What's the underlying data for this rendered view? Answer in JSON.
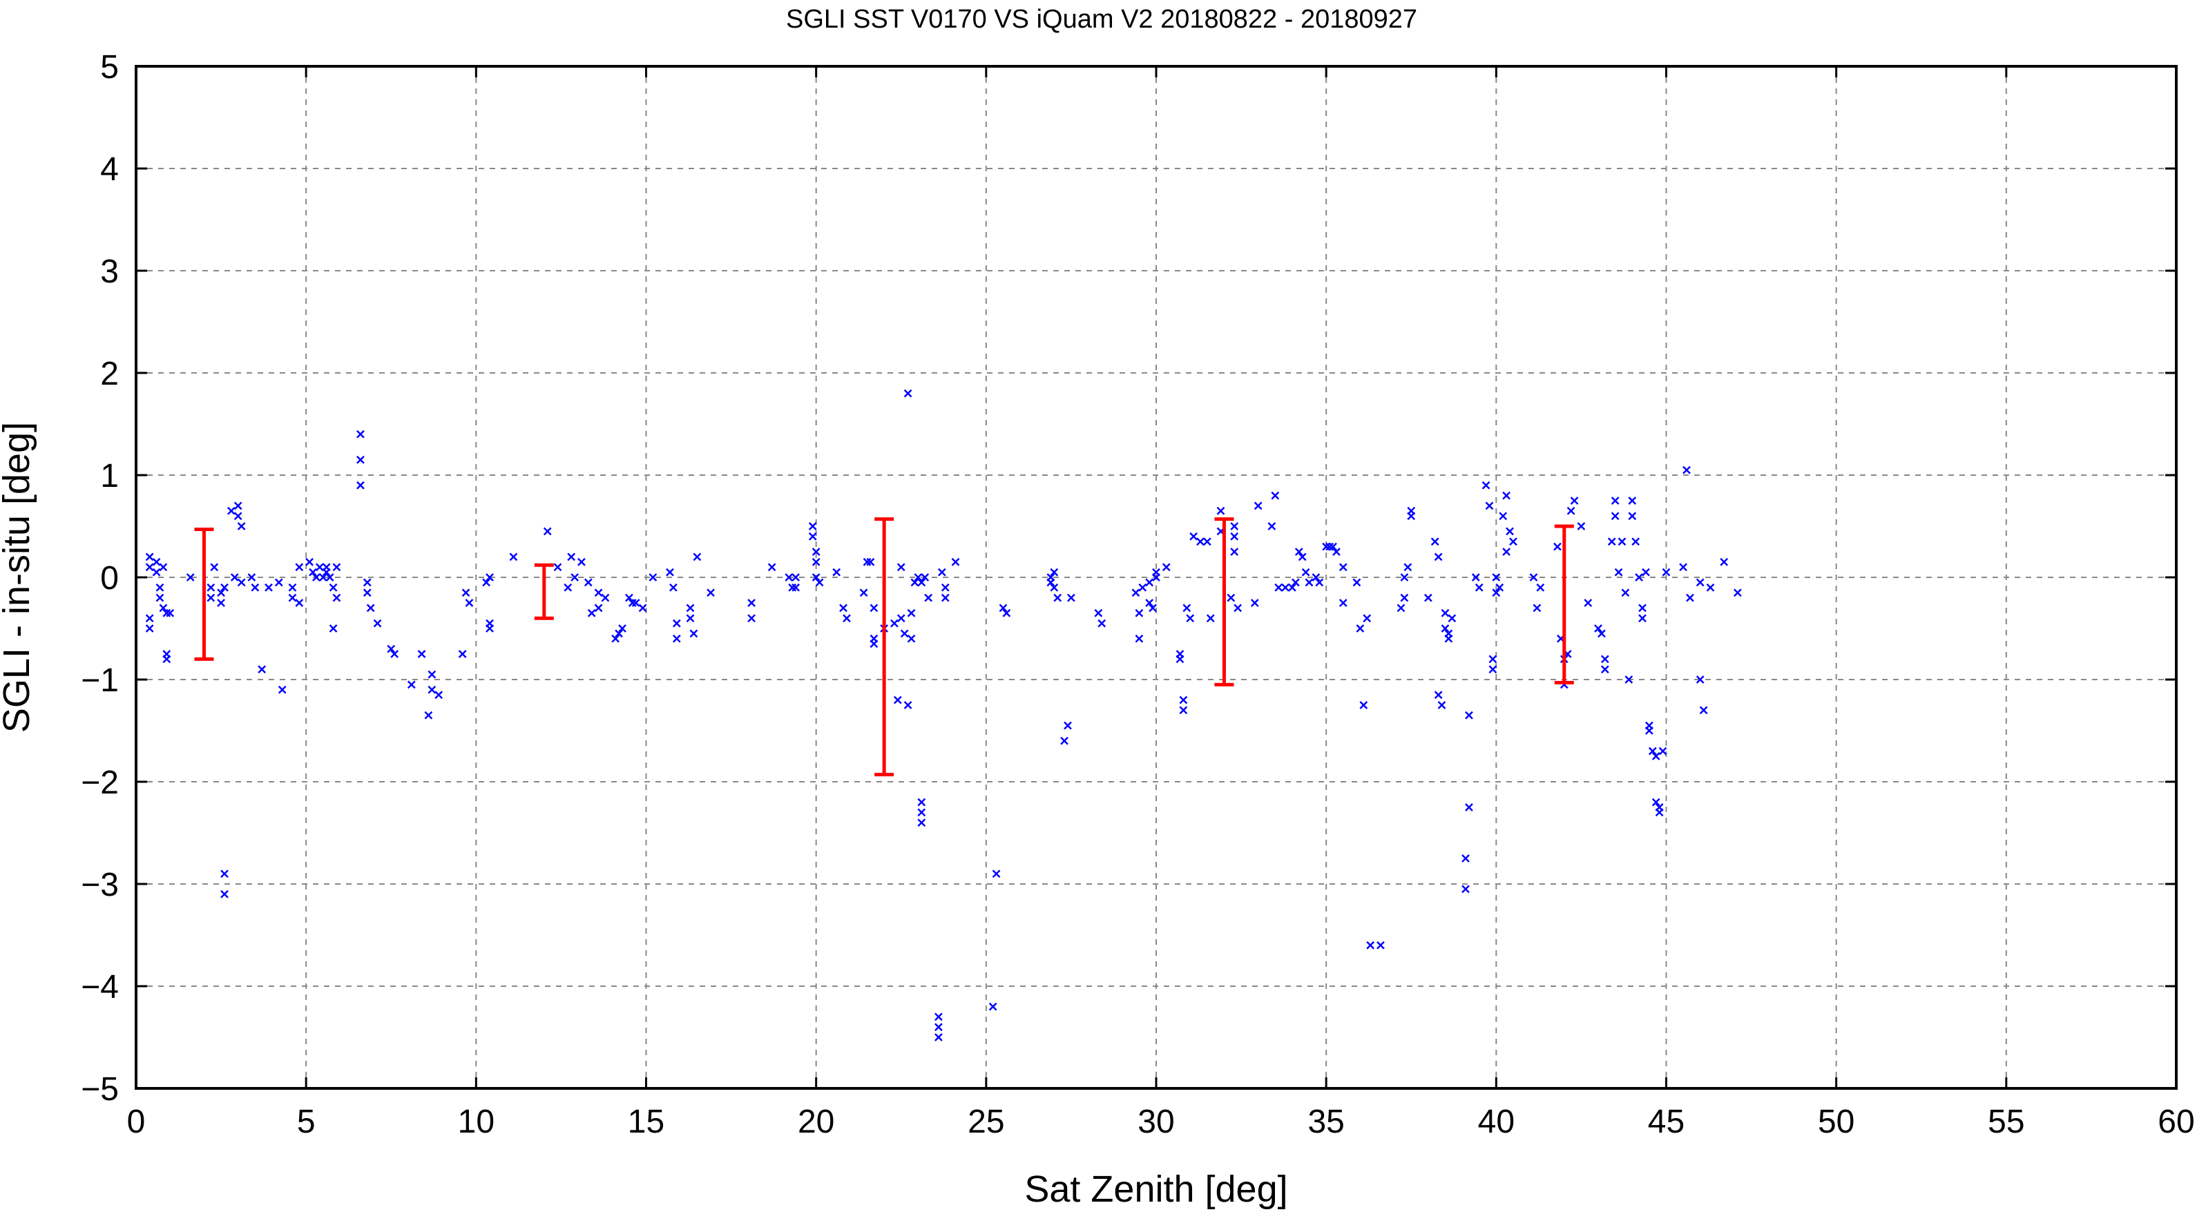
{
  "chart_data": {
    "type": "scatter",
    "title": "SGLI SST V0170 VS iQuam V2 20180822 - 20180927",
    "xlabel": "Sat Zenith [deg]",
    "ylabel": "SGLI - in-situ [deg]",
    "xlim": [
      0,
      60
    ],
    "ylim": [
      -5,
      5
    ],
    "x_ticks": [
      0,
      5,
      10,
      15,
      20,
      25,
      30,
      35,
      40,
      45,
      50,
      55,
      60
    ],
    "y_ticks": [
      -5,
      -4,
      -3,
      -2,
      -1,
      0,
      1,
      2,
      3,
      4,
      5
    ],
    "x_tick_labels": [
      "0",
      "5",
      "10",
      "15",
      "20",
      "25",
      "30",
      "35",
      "40",
      "45",
      "50",
      "55",
      "60"
    ],
    "y_tick_labels": [
      "−5",
      "−4",
      "−3",
      "−2",
      "−1",
      "0",
      "1",
      "2",
      "3",
      "4",
      "5"
    ],
    "grid": true,
    "colors": {
      "points": "#0000ff",
      "error_bars": "#ff0000",
      "grid": "#888888",
      "axes": "#000000"
    },
    "series": [
      {
        "marker": "x",
        "points": [
          [
            0.4,
            0.2
          ],
          [
            0.4,
            0.1
          ],
          [
            0.4,
            -0.4
          ],
          [
            0.4,
            -0.5
          ],
          [
            0.6,
            0.15
          ],
          [
            0.6,
            0.05
          ],
          [
            0.7,
            -0.1
          ],
          [
            0.7,
            -0.2
          ],
          [
            0.8,
            -0.3
          ],
          [
            0.8,
            0.1
          ],
          [
            0.9,
            -0.35
          ],
          [
            0.9,
            -0.8
          ],
          [
            0.9,
            -0.75
          ],
          [
            1.0,
            -0.35
          ],
          [
            1.6,
            0.0
          ],
          [
            2.2,
            -0.1
          ],
          [
            2.2,
            -0.2
          ],
          [
            2.3,
            0.1
          ],
          [
            2.5,
            -0.15
          ],
          [
            2.5,
            -0.25
          ],
          [
            2.6,
            -0.1
          ],
          [
            2.6,
            -2.9
          ],
          [
            2.6,
            -3.1
          ],
          [
            2.8,
            0.65
          ],
          [
            2.9,
            0.0
          ],
          [
            3.0,
            0.7
          ],
          [
            3.0,
            0.6
          ],
          [
            3.1,
            0.5
          ],
          [
            3.1,
            -0.05
          ],
          [
            3.4,
            0.0
          ],
          [
            3.5,
            -0.1
          ],
          [
            3.7,
            -0.9
          ],
          [
            3.9,
            -0.1
          ],
          [
            4.2,
            -0.05
          ],
          [
            4.3,
            -1.1
          ],
          [
            4.6,
            -0.2
          ],
          [
            4.6,
            -0.1
          ],
          [
            4.8,
            0.1
          ],
          [
            4.8,
            -0.25
          ],
          [
            5.1,
            0.15
          ],
          [
            5.2,
            0.05
          ],
          [
            5.3,
            0.0
          ],
          [
            5.4,
            0.1
          ],
          [
            5.5,
            0.0
          ],
          [
            5.6,
            0.1
          ],
          [
            5.6,
            0.05
          ],
          [
            5.7,
            0.0
          ],
          [
            5.8,
            -0.1
          ],
          [
            5.8,
            -0.5
          ],
          [
            5.9,
            0.1
          ],
          [
            5.9,
            -0.2
          ],
          [
            6.6,
            1.4
          ],
          [
            6.6,
            1.15
          ],
          [
            6.6,
            0.9
          ],
          [
            6.8,
            -0.05
          ],
          [
            6.8,
            -0.15
          ],
          [
            6.9,
            -0.3
          ],
          [
            7.1,
            -0.45
          ],
          [
            7.5,
            -0.7
          ],
          [
            7.6,
            -0.75
          ],
          [
            8.1,
            -1.05
          ],
          [
            8.4,
            -0.75
          ],
          [
            8.6,
            -1.35
          ],
          [
            8.7,
            -1.1
          ],
          [
            8.7,
            -0.95
          ],
          [
            8.9,
            -1.15
          ],
          [
            9.6,
            -0.75
          ],
          [
            9.7,
            -0.15
          ],
          [
            9.8,
            -0.25
          ],
          [
            10.3,
            -0.05
          ],
          [
            10.4,
            0.0
          ],
          [
            10.4,
            -0.45
          ],
          [
            10.4,
            -0.5
          ],
          [
            11.1,
            0.2
          ],
          [
            12.1,
            0.45
          ],
          [
            12.4,
            0.1
          ],
          [
            12.7,
            -0.1
          ],
          [
            12.8,
            0.2
          ],
          [
            12.9,
            0.0
          ],
          [
            13.1,
            0.15
          ],
          [
            13.3,
            -0.05
          ],
          [
            13.4,
            -0.35
          ],
          [
            13.6,
            -0.15
          ],
          [
            13.6,
            -0.3
          ],
          [
            13.8,
            -0.2
          ],
          [
            14.1,
            -0.6
          ],
          [
            14.2,
            -0.55
          ],
          [
            14.3,
            -0.5
          ],
          [
            14.5,
            -0.2
          ],
          [
            14.6,
            -0.25
          ],
          [
            14.7,
            -0.25
          ],
          [
            14.9,
            -0.3
          ],
          [
            15.2,
            0.0
          ],
          [
            15.7,
            0.05
          ],
          [
            15.8,
            -0.1
          ],
          [
            15.9,
            -0.45
          ],
          [
            15.9,
            -0.6
          ],
          [
            16.3,
            -0.3
          ],
          [
            16.3,
            -0.4
          ],
          [
            16.4,
            -0.55
          ],
          [
            16.5,
            0.2
          ],
          [
            16.9,
            -0.15
          ],
          [
            18.1,
            -0.25
          ],
          [
            18.1,
            -0.4
          ],
          [
            18.7,
            0.1
          ],
          [
            19.2,
            0.0
          ],
          [
            19.3,
            -0.1
          ],
          [
            19.4,
            0.0
          ],
          [
            19.4,
            -0.1
          ],
          [
            19.9,
            0.5
          ],
          [
            19.9,
            0.4
          ],
          [
            20.0,
            0.25
          ],
          [
            20.0,
            0.15
          ],
          [
            20.0,
            0.0
          ],
          [
            20.1,
            -0.05
          ],
          [
            20.6,
            0.05
          ],
          [
            20.8,
            -0.3
          ],
          [
            20.9,
            -0.4
          ],
          [
            21.4,
            -0.15
          ],
          [
            21.5,
            0.15
          ],
          [
            21.6,
            0.15
          ],
          [
            21.7,
            -0.3
          ],
          [
            21.7,
            -0.6
          ],
          [
            21.7,
            -0.65
          ],
          [
            22.0,
            -0.5
          ],
          [
            22.3,
            -0.45
          ],
          [
            22.4,
            -1.2
          ],
          [
            22.5,
            0.1
          ],
          [
            22.5,
            -0.4
          ],
          [
            22.6,
            -0.55
          ],
          [
            22.7,
            1.8
          ],
          [
            22.7,
            -1.25
          ],
          [
            22.8,
            -0.35
          ],
          [
            22.8,
            -0.6
          ],
          [
            22.9,
            -0.05
          ],
          [
            23.0,
            0.0
          ],
          [
            23.1,
            -0.05
          ],
          [
            23.1,
            -2.2
          ],
          [
            23.1,
            -2.3
          ],
          [
            23.1,
            -2.4
          ],
          [
            23.2,
            0.0
          ],
          [
            23.3,
            -0.2
          ],
          [
            23.6,
            -4.3
          ],
          [
            23.6,
            -4.4
          ],
          [
            23.6,
            -4.5
          ],
          [
            23.7,
            0.05
          ],
          [
            23.8,
            -0.1
          ],
          [
            23.8,
            -0.2
          ],
          [
            24.1,
            0.15
          ],
          [
            25.2,
            -4.2
          ],
          [
            25.3,
            -2.9
          ],
          [
            25.5,
            -0.3
          ],
          [
            25.6,
            -0.35
          ],
          [
            26.9,
            0.0
          ],
          [
            26.9,
            -0.05
          ],
          [
            27.0,
            0.05
          ],
          [
            27.0,
            -0.1
          ],
          [
            27.1,
            -0.2
          ],
          [
            27.3,
            -1.6
          ],
          [
            27.4,
            -1.45
          ],
          [
            27.5,
            -0.2
          ],
          [
            28.3,
            -0.35
          ],
          [
            28.4,
            -0.45
          ],
          [
            29.4,
            -0.15
          ],
          [
            29.5,
            -0.35
          ],
          [
            29.5,
            -0.6
          ],
          [
            29.6,
            -0.1
          ],
          [
            29.8,
            -0.05
          ],
          [
            29.8,
            -0.25
          ],
          [
            29.9,
            -0.3
          ],
          [
            30.0,
            0.05
          ],
          [
            30.0,
            0.0
          ],
          [
            30.3,
            0.1
          ],
          [
            30.7,
            -0.75
          ],
          [
            30.7,
            -0.8
          ],
          [
            30.8,
            -1.2
          ],
          [
            30.8,
            -1.3
          ],
          [
            30.9,
            -0.3
          ],
          [
            31.0,
            -0.4
          ],
          [
            31.1,
            0.4
          ],
          [
            31.3,
            0.35
          ],
          [
            31.5,
            0.35
          ],
          [
            31.6,
            -0.4
          ],
          [
            31.9,
            0.45
          ],
          [
            31.9,
            0.65
          ],
          [
            32.2,
            -0.2
          ],
          [
            32.3,
            0.5
          ],
          [
            32.3,
            0.4
          ],
          [
            32.3,
            0.25
          ],
          [
            32.4,
            -0.3
          ],
          [
            32.9,
            -0.25
          ],
          [
            33.0,
            0.7
          ],
          [
            33.4,
            0.5
          ],
          [
            33.5,
            0.8
          ],
          [
            33.6,
            -0.1
          ],
          [
            33.8,
            -0.1
          ],
          [
            34.0,
            -0.1
          ],
          [
            34.1,
            -0.05
          ],
          [
            34.2,
            0.25
          ],
          [
            34.3,
            0.2
          ],
          [
            34.4,
            0.05
          ],
          [
            34.5,
            -0.05
          ],
          [
            34.7,
            0.0
          ],
          [
            34.8,
            -0.05
          ],
          [
            35.0,
            0.3
          ],
          [
            35.1,
            0.3
          ],
          [
            35.2,
            0.3
          ],
          [
            35.3,
            0.25
          ],
          [
            35.5,
            0.1
          ],
          [
            35.5,
            -0.25
          ],
          [
            35.9,
            -0.05
          ],
          [
            36.0,
            -0.5
          ],
          [
            36.1,
            -1.25
          ],
          [
            36.2,
            -0.4
          ],
          [
            36.3,
            -3.6
          ],
          [
            36.6,
            -3.6
          ],
          [
            37.2,
            -0.3
          ],
          [
            37.3,
            -0.2
          ],
          [
            37.3,
            0.0
          ],
          [
            37.4,
            0.1
          ],
          [
            37.5,
            0.6
          ],
          [
            37.5,
            0.65
          ],
          [
            38.0,
            -0.2
          ],
          [
            38.2,
            0.35
          ],
          [
            38.3,
            0.2
          ],
          [
            38.3,
            -1.15
          ],
          [
            38.4,
            -1.25
          ],
          [
            38.5,
            -0.35
          ],
          [
            38.5,
            -0.5
          ],
          [
            38.6,
            -0.55
          ],
          [
            38.6,
            -0.6
          ],
          [
            38.7,
            -0.4
          ],
          [
            39.1,
            -3.05
          ],
          [
            39.1,
            -2.75
          ],
          [
            39.2,
            -2.25
          ],
          [
            39.2,
            -1.35
          ],
          [
            39.4,
            0.0
          ],
          [
            39.5,
            -0.1
          ],
          [
            39.7,
            0.9
          ],
          [
            39.8,
            0.7
          ],
          [
            39.9,
            -0.8
          ],
          [
            39.9,
            -0.9
          ],
          [
            40.0,
            0.0
          ],
          [
            40.0,
            -0.15
          ],
          [
            40.1,
            -0.1
          ],
          [
            40.2,
            0.6
          ],
          [
            40.3,
            0.25
          ],
          [
            40.3,
            0.8
          ],
          [
            40.4,
            0.45
          ],
          [
            40.5,
            0.35
          ],
          [
            41.1,
            0.0
          ],
          [
            41.2,
            -0.3
          ],
          [
            41.3,
            -0.1
          ],
          [
            41.8,
            0.3
          ],
          [
            41.9,
            -0.6
          ],
          [
            42.0,
            -1.05
          ],
          [
            42.0,
            -0.8
          ],
          [
            42.1,
            -0.75
          ],
          [
            42.2,
            0.65
          ],
          [
            42.3,
            0.75
          ],
          [
            42.5,
            0.5
          ],
          [
            42.7,
            -0.25
          ],
          [
            43.0,
            -0.5
          ],
          [
            43.1,
            -0.55
          ],
          [
            43.2,
            -0.8
          ],
          [
            43.2,
            -0.9
          ],
          [
            43.4,
            0.35
          ],
          [
            43.5,
            0.75
          ],
          [
            43.5,
            0.6
          ],
          [
            43.6,
            0.05
          ],
          [
            43.7,
            0.35
          ],
          [
            43.8,
            -0.15
          ],
          [
            43.9,
            -1.0
          ],
          [
            44.0,
            0.75
          ],
          [
            44.0,
            0.6
          ],
          [
            44.1,
            0.35
          ],
          [
            44.2,
            0.0
          ],
          [
            44.3,
            -0.3
          ],
          [
            44.3,
            -0.4
          ],
          [
            44.4,
            0.05
          ],
          [
            44.5,
            -1.45
          ],
          [
            44.5,
            -1.5
          ],
          [
            44.6,
            -1.7
          ],
          [
            44.7,
            -1.75
          ],
          [
            44.7,
            -2.2
          ],
          [
            44.8,
            -2.25
          ],
          [
            44.8,
            -2.3
          ],
          [
            44.9,
            -1.7
          ],
          [
            45.0,
            0.05
          ],
          [
            45.5,
            0.1
          ],
          [
            45.6,
            1.05
          ],
          [
            45.7,
            -0.2
          ],
          [
            46.0,
            -0.05
          ],
          [
            46.0,
            -1.0
          ],
          [
            46.1,
            -1.3
          ],
          [
            46.3,
            -0.1
          ],
          [
            46.7,
            0.15
          ],
          [
            47.1,
            -0.15
          ]
        ]
      }
    ],
    "error_bars": [
      {
        "x": 2,
        "low": -0.8,
        "high": 0.47
      },
      {
        "x": 12,
        "low": -0.4,
        "high": 0.12
      },
      {
        "x": 22,
        "low": -1.93,
        "high": 0.57
      },
      {
        "x": 32,
        "low": -1.05,
        "high": 0.57
      },
      {
        "x": 42,
        "low": -1.03,
        "high": 0.5
      }
    ]
  }
}
